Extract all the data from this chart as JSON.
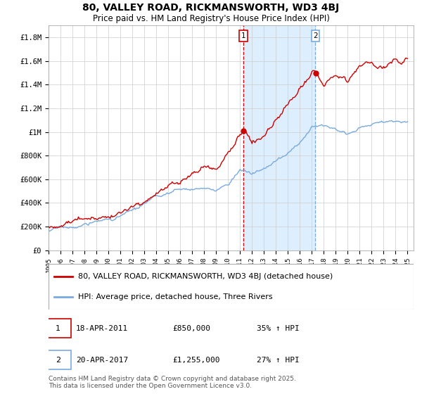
{
  "title": "80, VALLEY ROAD, RICKMANSWORTH, WD3 4BJ",
  "subtitle": "Price paid vs. HM Land Registry's House Price Index (HPI)",
  "ylabel_ticks": [
    "£0",
    "£200K",
    "£400K",
    "£600K",
    "£800K",
    "£1M",
    "£1.2M",
    "£1.4M",
    "£1.6M",
    "£1.8M"
  ],
  "ytick_values": [
    0,
    200000,
    400000,
    600000,
    800000,
    1000000,
    1200000,
    1400000,
    1600000,
    1800000
  ],
  "ylim": [
    0,
    1900000
  ],
  "x_start_year": 1995,
  "x_end_year": 2025,
  "purchase1_date": 2011.29,
  "purchase2_date": 2017.3,
  "purchase1_label": "18-APR-2011",
  "purchase1_price": "£850,000",
  "purchase1_pct": "35% ↑ HPI",
  "purchase2_label": "20-APR-2017",
  "purchase2_price": "£1,255,000",
  "purchase2_pct": "27% ↑ HPI",
  "line1_color": "#cc0000",
  "line2_color": "#7aaadd",
  "shading_color": "#ddeeff",
  "vline1_color": "#cc0000",
  "vline2_color": "#7aaadd",
  "legend1_label": "80, VALLEY ROAD, RICKMANSWORTH, WD3 4BJ (detached house)",
  "legend2_label": "HPI: Average price, detached house, Three Rivers",
  "footer": "Contains HM Land Registry data © Crown copyright and database right 2025.\nThis data is licensed under the Open Government Licence v3.0.",
  "title_fontsize": 10,
  "subtitle_fontsize": 8.5,
  "axis_fontsize": 7.5,
  "legend_fontsize": 8,
  "footer_fontsize": 6.5
}
